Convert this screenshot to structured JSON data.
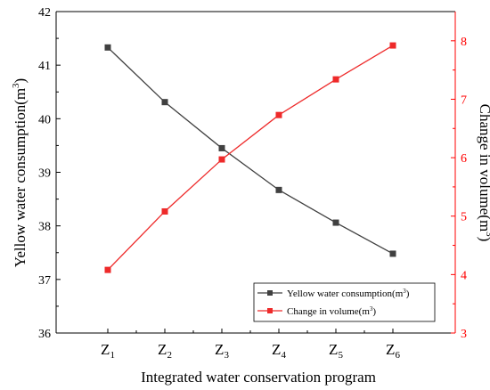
{
  "chart_data": {
    "type": "line",
    "xlabel": "Integrated water conservation program",
    "categories": [
      {
        "base": "Z",
        "sub": "1"
      },
      {
        "base": "Z",
        "sub": "2"
      },
      {
        "base": "Z",
        "sub": "3"
      },
      {
        "base": "Z",
        "sub": "4"
      },
      {
        "base": "Z",
        "sub": "5"
      },
      {
        "base": "Z",
        "sub": "6"
      }
    ],
    "left_axis": {
      "label_text": "Yellow water consumption(m",
      "label_sup": "3",
      "label_end": ")",
      "ylim": [
        36,
        42
      ],
      "ticks": [
        36,
        37,
        38,
        39,
        40,
        41,
        42
      ],
      "color": "#000000"
    },
    "right_axis": {
      "label_text": "Change in volume(m",
      "label_sup": "3",
      "label_end": ")",
      "ylim": [
        3,
        8.5
      ],
      "ticks": [
        3,
        4,
        5,
        6,
        7,
        8
      ],
      "color": "#ff0000"
    },
    "series": [
      {
        "name_text": "Yellow water consumption(m",
        "name_sup": "3",
        "name_end": ")",
        "axis": "left",
        "color": "#404040",
        "marker": "square",
        "values": [
          41.33,
          40.31,
          39.45,
          38.67,
          38.06,
          37.48
        ]
      },
      {
        "name_text": "Change in volume(m",
        "name_sup": "3",
        "name_end": ")",
        "axis": "right",
        "color": "#ee2a2a",
        "marker": "square",
        "values": [
          4.08,
          5.08,
          5.97,
          6.73,
          7.34,
          7.92
        ]
      }
    ],
    "legend_position": "bottom-right",
    "grid": false
  }
}
